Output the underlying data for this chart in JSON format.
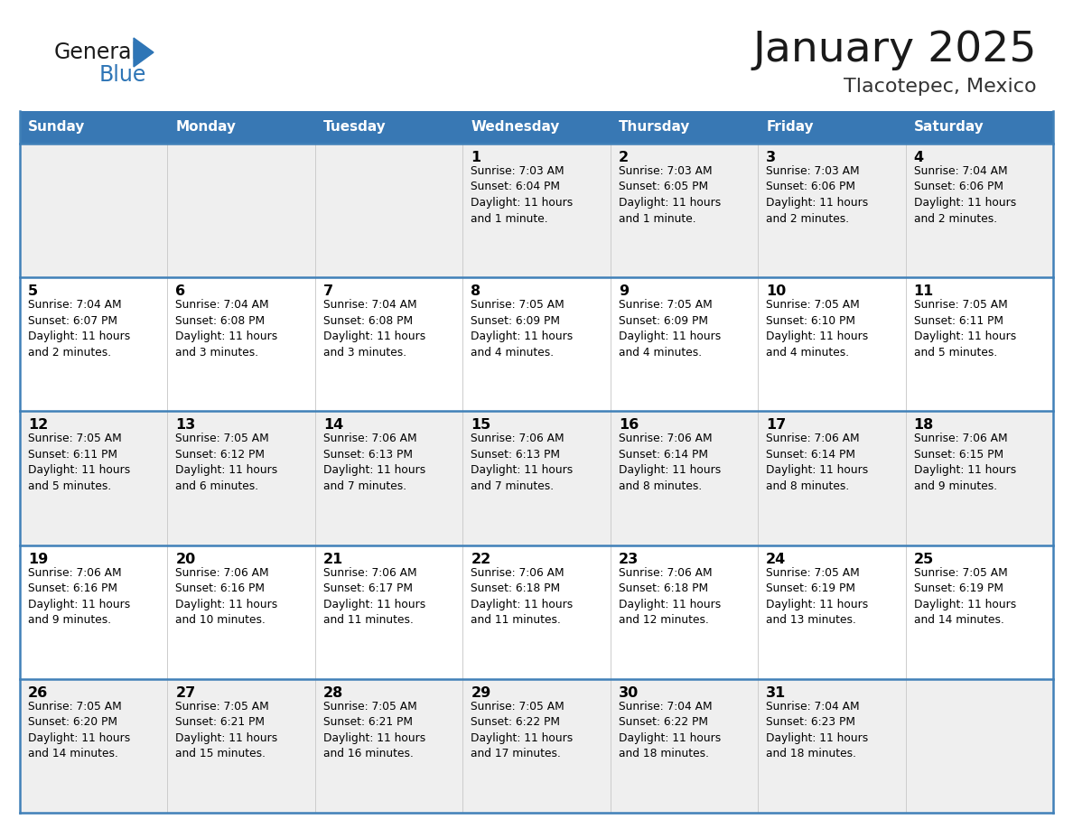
{
  "title": "January 2025",
  "subtitle": "Tlacotepec, Mexico",
  "days_of_week": [
    "Sunday",
    "Monday",
    "Tuesday",
    "Wednesday",
    "Thursday",
    "Friday",
    "Saturday"
  ],
  "header_bg": "#3878B4",
  "header_text": "#FFFFFF",
  "row_bg_odd": "#EFEFEF",
  "row_bg_even": "#FFFFFF",
  "cell_border_color": "#4080B8",
  "day_num_color": "#000000",
  "info_text_color": "#000000",
  "title_color": "#1a1a1a",
  "subtitle_color": "#333333",
  "logo_general_color": "#1a1a1a",
  "logo_blue_color": "#2E75B6",
  "logo_triangle_color": "#2E75B6",
  "calendar_data": [
    [
      {
        "day": 0,
        "info": ""
      },
      {
        "day": 0,
        "info": ""
      },
      {
        "day": 0,
        "info": ""
      },
      {
        "day": 1,
        "info": "Sunrise: 7:03 AM\nSunset: 6:04 PM\nDaylight: 11 hours\nand 1 minute."
      },
      {
        "day": 2,
        "info": "Sunrise: 7:03 AM\nSunset: 6:05 PM\nDaylight: 11 hours\nand 1 minute."
      },
      {
        "day": 3,
        "info": "Sunrise: 7:03 AM\nSunset: 6:06 PM\nDaylight: 11 hours\nand 2 minutes."
      },
      {
        "day": 4,
        "info": "Sunrise: 7:04 AM\nSunset: 6:06 PM\nDaylight: 11 hours\nand 2 minutes."
      }
    ],
    [
      {
        "day": 5,
        "info": "Sunrise: 7:04 AM\nSunset: 6:07 PM\nDaylight: 11 hours\nand 2 minutes."
      },
      {
        "day": 6,
        "info": "Sunrise: 7:04 AM\nSunset: 6:08 PM\nDaylight: 11 hours\nand 3 minutes."
      },
      {
        "day": 7,
        "info": "Sunrise: 7:04 AM\nSunset: 6:08 PM\nDaylight: 11 hours\nand 3 minutes."
      },
      {
        "day": 8,
        "info": "Sunrise: 7:05 AM\nSunset: 6:09 PM\nDaylight: 11 hours\nand 4 minutes."
      },
      {
        "day": 9,
        "info": "Sunrise: 7:05 AM\nSunset: 6:09 PM\nDaylight: 11 hours\nand 4 minutes."
      },
      {
        "day": 10,
        "info": "Sunrise: 7:05 AM\nSunset: 6:10 PM\nDaylight: 11 hours\nand 4 minutes."
      },
      {
        "day": 11,
        "info": "Sunrise: 7:05 AM\nSunset: 6:11 PM\nDaylight: 11 hours\nand 5 minutes."
      }
    ],
    [
      {
        "day": 12,
        "info": "Sunrise: 7:05 AM\nSunset: 6:11 PM\nDaylight: 11 hours\nand 5 minutes."
      },
      {
        "day": 13,
        "info": "Sunrise: 7:05 AM\nSunset: 6:12 PM\nDaylight: 11 hours\nand 6 minutes."
      },
      {
        "day": 14,
        "info": "Sunrise: 7:06 AM\nSunset: 6:13 PM\nDaylight: 11 hours\nand 7 minutes."
      },
      {
        "day": 15,
        "info": "Sunrise: 7:06 AM\nSunset: 6:13 PM\nDaylight: 11 hours\nand 7 minutes."
      },
      {
        "day": 16,
        "info": "Sunrise: 7:06 AM\nSunset: 6:14 PM\nDaylight: 11 hours\nand 8 minutes."
      },
      {
        "day": 17,
        "info": "Sunrise: 7:06 AM\nSunset: 6:14 PM\nDaylight: 11 hours\nand 8 minutes."
      },
      {
        "day": 18,
        "info": "Sunrise: 7:06 AM\nSunset: 6:15 PM\nDaylight: 11 hours\nand 9 minutes."
      }
    ],
    [
      {
        "day": 19,
        "info": "Sunrise: 7:06 AM\nSunset: 6:16 PM\nDaylight: 11 hours\nand 9 minutes."
      },
      {
        "day": 20,
        "info": "Sunrise: 7:06 AM\nSunset: 6:16 PM\nDaylight: 11 hours\nand 10 minutes."
      },
      {
        "day": 21,
        "info": "Sunrise: 7:06 AM\nSunset: 6:17 PM\nDaylight: 11 hours\nand 11 minutes."
      },
      {
        "day": 22,
        "info": "Sunrise: 7:06 AM\nSunset: 6:18 PM\nDaylight: 11 hours\nand 11 minutes."
      },
      {
        "day": 23,
        "info": "Sunrise: 7:06 AM\nSunset: 6:18 PM\nDaylight: 11 hours\nand 12 minutes."
      },
      {
        "day": 24,
        "info": "Sunrise: 7:05 AM\nSunset: 6:19 PM\nDaylight: 11 hours\nand 13 minutes."
      },
      {
        "day": 25,
        "info": "Sunrise: 7:05 AM\nSunset: 6:19 PM\nDaylight: 11 hours\nand 14 minutes."
      }
    ],
    [
      {
        "day": 26,
        "info": "Sunrise: 7:05 AM\nSunset: 6:20 PM\nDaylight: 11 hours\nand 14 minutes."
      },
      {
        "day": 27,
        "info": "Sunrise: 7:05 AM\nSunset: 6:21 PM\nDaylight: 11 hours\nand 15 minutes."
      },
      {
        "day": 28,
        "info": "Sunrise: 7:05 AM\nSunset: 6:21 PM\nDaylight: 11 hours\nand 16 minutes."
      },
      {
        "day": 29,
        "info": "Sunrise: 7:05 AM\nSunset: 6:22 PM\nDaylight: 11 hours\nand 17 minutes."
      },
      {
        "day": 30,
        "info": "Sunrise: 7:04 AM\nSunset: 6:22 PM\nDaylight: 11 hours\nand 18 minutes."
      },
      {
        "day": 31,
        "info": "Sunrise: 7:04 AM\nSunset: 6:23 PM\nDaylight: 11 hours\nand 18 minutes."
      },
      {
        "day": 0,
        "info": ""
      }
    ]
  ]
}
